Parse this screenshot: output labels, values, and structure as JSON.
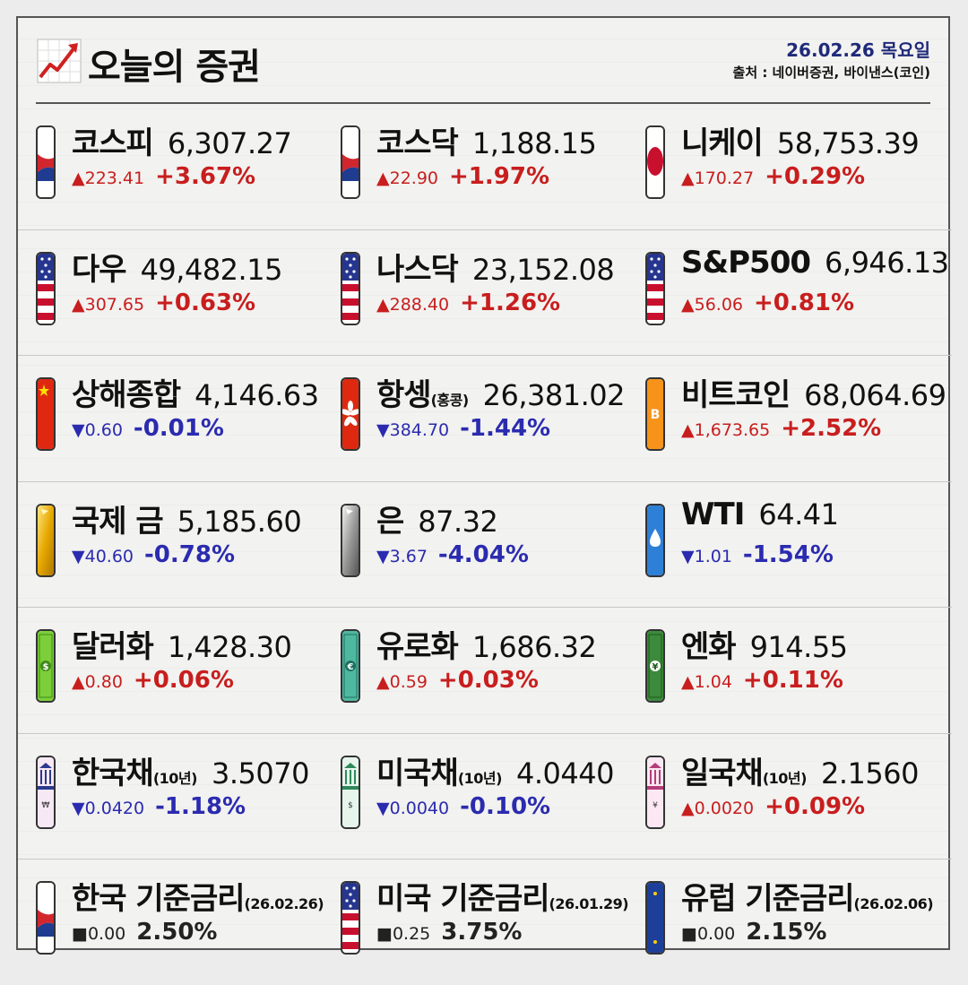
{
  "header": {
    "title": "오늘의 증권",
    "date": "26.02.26 목요일",
    "source": "출처 : 네이버증권, 바이낸스(코인)"
  },
  "colors": {
    "up": "#c81e1e",
    "down": "#2b2bb0",
    "flat": "#222222",
    "date": "#1f2a7a"
  },
  "rows": [
    [
      {
        "name": "코스피",
        "sub": "",
        "value": "6,307.27",
        "change": "▲223.41",
        "pct": "+3.67%",
        "dir": "up",
        "icon": "korea-flag-icon"
      },
      {
        "name": "코스닥",
        "sub": "",
        "value": "1,188.15",
        "change": "▲22.90",
        "pct": "+1.97%",
        "dir": "up",
        "icon": "korea-flag-icon"
      },
      {
        "name": "니케이",
        "sub": "",
        "value": "58,753.39",
        "change": "▲170.27",
        "pct": "+0.29%",
        "dir": "up",
        "icon": "japan-flag-icon"
      }
    ],
    [
      {
        "name": "다우",
        "sub": "",
        "value": "49,482.15",
        "change": "▲307.65",
        "pct": "+0.63%",
        "dir": "up",
        "icon": "usa-flag-icon"
      },
      {
        "name": "나스닥",
        "sub": "",
        "value": "23,152.08",
        "change": "▲288.40",
        "pct": "+1.26%",
        "dir": "up",
        "icon": "usa-flag-icon"
      },
      {
        "name": "S&P500",
        "sub": "",
        "value": "6,946.13",
        "change": "▲56.06",
        "pct": "+0.81%",
        "dir": "up",
        "icon": "usa-flag-icon"
      }
    ],
    [
      {
        "name": "상해종합",
        "sub": "",
        "value": "4,146.63",
        "change": "▼0.60",
        "pct": "-0.01%",
        "dir": "down",
        "icon": "china-flag-icon"
      },
      {
        "name": "항셍",
        "sub": "(홍콩)",
        "value": "26,381.02",
        "change": "▼384.70",
        "pct": "-1.44%",
        "dir": "down",
        "icon": "hongkong-flag-icon"
      },
      {
        "name": "비트코인",
        "sub": "",
        "value": "68,064.69",
        "change": "▲1,673.65",
        "pct": "+2.52%",
        "dir": "up",
        "icon": "bitcoin-icon"
      }
    ],
    [
      {
        "name": "국제 금",
        "sub": "",
        "value": "5,185.60",
        "change": "▼40.60",
        "pct": "-0.78%",
        "dir": "down",
        "icon": "gold-bar-icon"
      },
      {
        "name": "은",
        "sub": "",
        "value": "87.32",
        "change": "▼3.67",
        "pct": "-4.04%",
        "dir": "down",
        "icon": "silver-bar-icon"
      },
      {
        "name": "WTI",
        "sub": "",
        "value": "64.41",
        "change": "▼1.01",
        "pct": "-1.54%",
        "dir": "down",
        "icon": "oil-drop-icon"
      }
    ],
    [
      {
        "name": "달러화",
        "sub": "",
        "value": "1,428.30",
        "change": "▲0.80",
        "pct": "+0.06%",
        "dir": "up",
        "icon": "dollar-bill-icon"
      },
      {
        "name": "유로화",
        "sub": "",
        "value": "1,686.32",
        "change": "▲0.59",
        "pct": "+0.03%",
        "dir": "up",
        "icon": "euro-bill-icon"
      },
      {
        "name": "엔화",
        "sub": "",
        "value": "914.55",
        "change": "▲1.04",
        "pct": "+0.11%",
        "dir": "up",
        "icon": "yen-bill-icon"
      }
    ],
    [
      {
        "name": "한국채",
        "sub": "(10년)",
        "value": "3.5070",
        "change": "▼0.0420",
        "pct": "-1.18%",
        "dir": "down",
        "icon": "korea-bond-icon"
      },
      {
        "name": "미국채",
        "sub": "(10년)",
        "value": "4.0440",
        "change": "▼0.0040",
        "pct": "-0.10%",
        "dir": "down",
        "icon": "us-bond-icon"
      },
      {
        "name": "일국채",
        "sub": "(10년)",
        "value": "2.1560",
        "change": "▲0.0020",
        "pct": "+0.09%",
        "dir": "up",
        "icon": "japan-bond-icon"
      }
    ],
    [
      {
        "name": "한국 기준금리",
        "sub": "(26.02.26)",
        "value": "",
        "change": "■0.00",
        "pct": "2.50%",
        "dir": "flat",
        "icon": "korea-flag-icon"
      },
      {
        "name": "미국 기준금리",
        "sub": "(26.01.29)",
        "value": "",
        "change": "■0.25",
        "pct": "3.75%",
        "dir": "flat",
        "icon": "usa-flag-icon"
      },
      {
        "name": "유럽 기준금리",
        "sub": "(26.02.06)",
        "value": "",
        "change": "■0.00",
        "pct": "2.15%",
        "dir": "flat",
        "icon": "eu-flag-icon"
      }
    ]
  ]
}
